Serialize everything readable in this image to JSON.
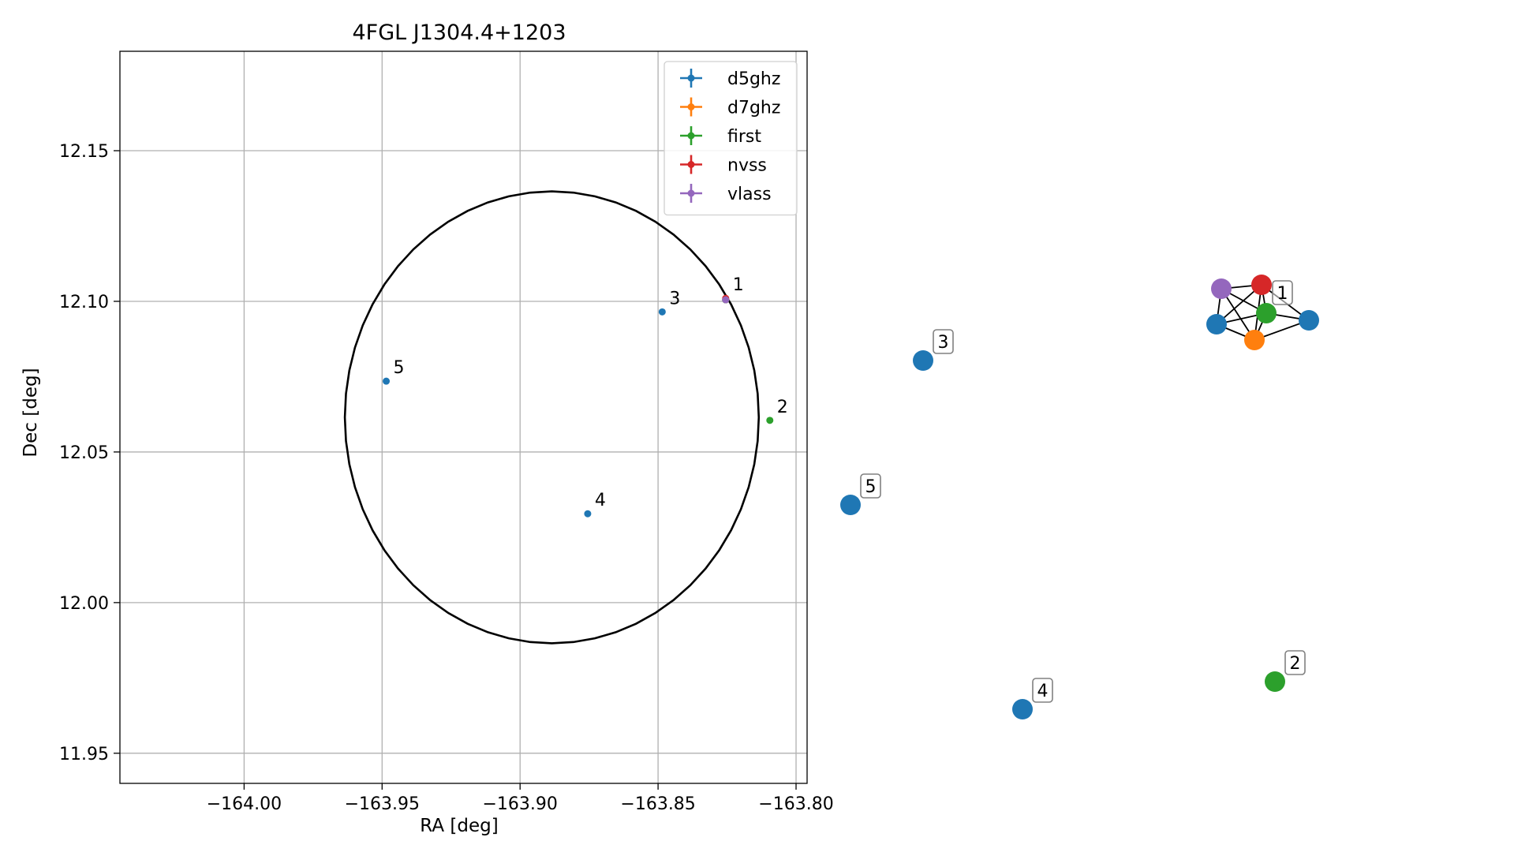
{
  "chart_data": [
    {
      "type": "scatter",
      "title": "4FGL J1304.4+1203",
      "xlabel": "RA [deg]",
      "ylabel": "Dec [deg]",
      "xlim": [
        -164.045,
        -163.796
      ],
      "ylim": [
        11.94,
        12.183
      ],
      "grid": true,
      "legend_placement": "top-right",
      "x_ticks": [
        -164.0,
        -163.95,
        -163.9,
        -163.85,
        -163.8
      ],
      "x_tick_labels": [
        "−164.00",
        "−163.95",
        "−163.90",
        "−163.85",
        "−163.80"
      ],
      "y_ticks": [
        11.95,
        12.0,
        12.05,
        12.1,
        12.15
      ],
      "y_tick_labels": [
        "11.95",
        "12.00",
        "12.05",
        "12.10",
        "12.15"
      ],
      "circle": {
        "center_ra": -163.8885,
        "center_dec": 12.0615,
        "radius_deg": 0.075
      },
      "series": [
        {
          "name": "d5ghz",
          "color": "#1f77b4",
          "points": [
            [
              -163.8255,
              12.1005
            ],
            [
              -163.8485,
              12.0965
            ],
            [
              -163.8755,
              12.0295
            ],
            [
              -163.9485,
              12.0735
            ]
          ]
        },
        {
          "name": "d7ghz",
          "color": "#ff7f0e",
          "points": [
            [
              -163.8255,
              12.1005
            ]
          ]
        },
        {
          "name": "first",
          "color": "#2ca02c",
          "points": [
            [
              -163.8255,
              12.1005
            ],
            [
              -163.8095,
              12.0605
            ]
          ]
        },
        {
          "name": "nvss",
          "color": "#d62728",
          "points": [
            [
              -163.8255,
              12.101
            ]
          ]
        },
        {
          "name": "vlass",
          "color": "#9467bd",
          "points": [
            [
              -163.8255,
              12.1005
            ]
          ]
        }
      ],
      "annotations": [
        {
          "text": "1",
          "x": -163.8255,
          "y": 12.101
        },
        {
          "text": "2",
          "x": -163.8095,
          "y": 12.0605
        },
        {
          "text": "3",
          "x": -163.8485,
          "y": 12.0965
        },
        {
          "text": "4",
          "x": -163.8755,
          "y": 12.0295
        },
        {
          "text": "5",
          "x": -163.9485,
          "y": 12.0735
        }
      ]
    },
    {
      "type": "network",
      "nodes": [
        {
          "id": "c1-purple",
          "color": "#9467bd",
          "label": ""
        },
        {
          "id": "c1-red",
          "color": "#d62728",
          "label": ""
        },
        {
          "id": "c1-green",
          "color": "#2ca02c",
          "label": "1"
        },
        {
          "id": "c1-blue-left",
          "color": "#1f77b4",
          "label": ""
        },
        {
          "id": "c1-orange",
          "color": "#ff7f0e",
          "label": ""
        },
        {
          "id": "c1-blue-right",
          "color": "#1f77b4",
          "label": ""
        },
        {
          "id": "n3",
          "color": "#1f77b4",
          "label": "3"
        },
        {
          "id": "n5",
          "color": "#1f77b4",
          "label": "5"
        },
        {
          "id": "n4",
          "color": "#1f77b4",
          "label": "4"
        },
        {
          "id": "n2",
          "color": "#2ca02c",
          "label": "2"
        }
      ],
      "edges": [
        [
          "c1-purple",
          "c1-red"
        ],
        [
          "c1-purple",
          "c1-green"
        ],
        [
          "c1-purple",
          "c1-blue-left"
        ],
        [
          "c1-purple",
          "c1-orange"
        ],
        [
          "c1-red",
          "c1-green"
        ],
        [
          "c1-red",
          "c1-blue-left"
        ],
        [
          "c1-red",
          "c1-orange"
        ],
        [
          "c1-red",
          "c1-blue-right"
        ],
        [
          "c1-green",
          "c1-blue-left"
        ],
        [
          "c1-green",
          "c1-orange"
        ],
        [
          "c1-green",
          "c1-blue-right"
        ],
        [
          "c1-blue-left",
          "c1-orange"
        ],
        [
          "c1-orange",
          "c1-blue-right"
        ]
      ]
    }
  ]
}
